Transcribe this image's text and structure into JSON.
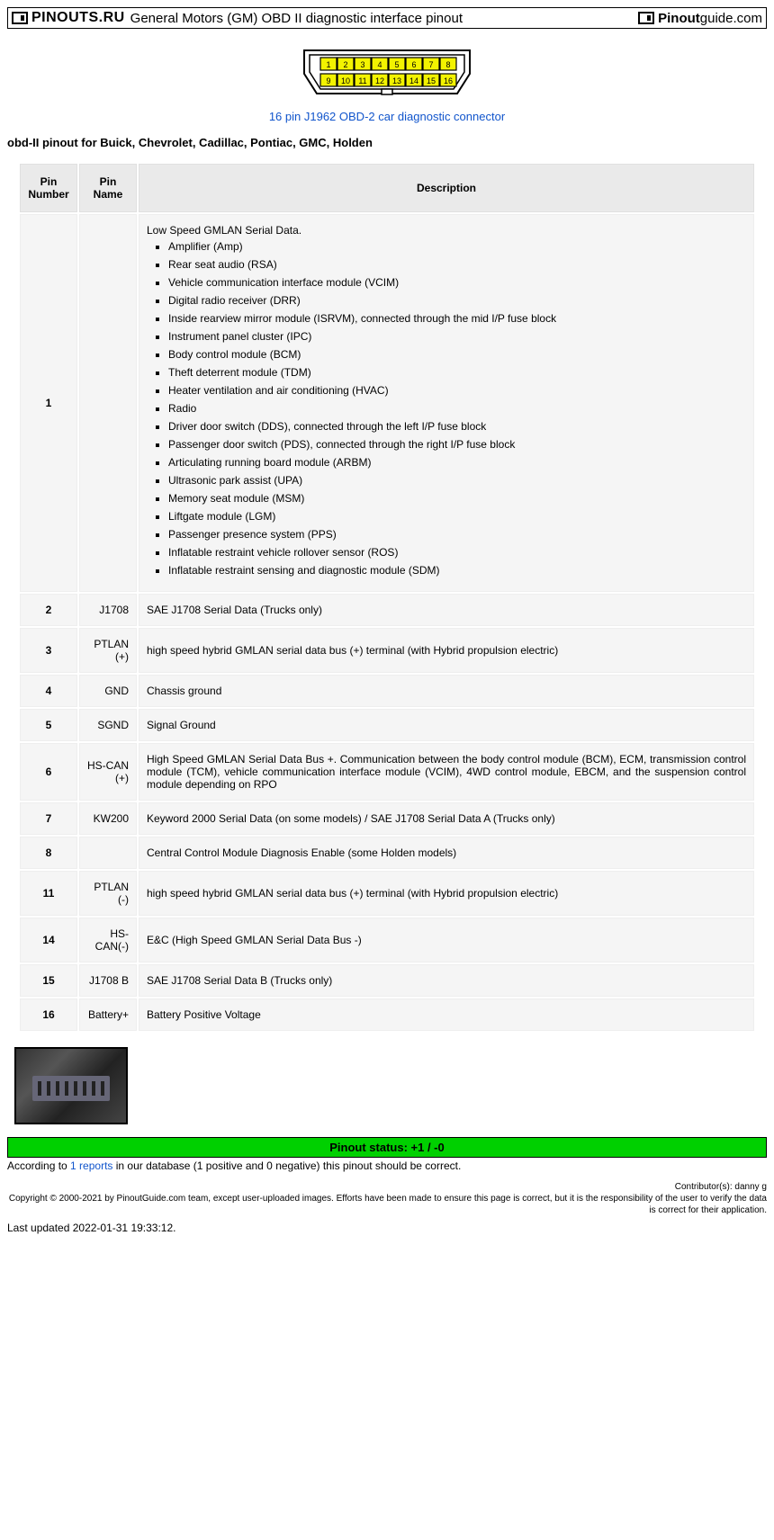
{
  "header": {
    "logo_left": "PINOUTS.RU",
    "title": "General Motors (GM) OBD II diagnostic interface pinout",
    "logo_right_a": "Pinout",
    "logo_right_b": "guide",
    "logo_right_c": ".com"
  },
  "connector": {
    "pins_top": [
      "1",
      "2",
      "3",
      "4",
      "5",
      "6",
      "7",
      "8"
    ],
    "pins_bottom": [
      "9",
      "10",
      "11",
      "12",
      "13",
      "14",
      "15",
      "16"
    ],
    "pin_fill": "#f3f300",
    "outline": "#000000",
    "link_text": "16 pin J1962 OBD-2 car diagnostic connector",
    "link_color": "#1155cc"
  },
  "subtitle": "obd-II pinout for Buick, Chevrolet, Cadillac, Pontiac, GMC, Holden",
  "table": {
    "headers": [
      "Pin Number",
      "Pin Name",
      "Description"
    ],
    "rows": [
      {
        "num": "1",
        "name": "",
        "desc_intro": "Low Speed GMLAN Serial Data.",
        "list": [
          "Amplifier (Amp)",
          "Rear seat audio (RSA)",
          "Vehicle communication interface module (VCIM)",
          "Digital radio receiver (DRR)",
          "Inside rearview mirror module (ISRVM), connected through the mid I/P fuse block",
          "Instrument panel cluster (IPC)",
          "Body control module (BCM)",
          "Theft deterrent module (TDM)",
          "Heater ventilation and air conditioning (HVAC)",
          "Radio",
          "Driver door switch (DDS), connected through the left I/P fuse block",
          "Passenger door switch (PDS), connected through the right I/P fuse block",
          "Articulating running board module (ARBM)",
          "Ultrasonic park assist (UPA)",
          "Memory seat module (MSM)",
          "Liftgate module (LGM)",
          "Passenger presence system (PPS)",
          "Inflatable restraint vehicle rollover sensor (ROS)",
          "Inflatable restraint sensing and diagnostic module (SDM)"
        ]
      },
      {
        "num": "2",
        "name": "J1708",
        "desc": "SAE J1708 Serial Data (Trucks only)"
      },
      {
        "num": "3",
        "name": "PTLAN (+)",
        "desc": "high speed hybrid GMLAN serial data bus (+) terminal  (with Hybrid propulsion electric)"
      },
      {
        "num": "4",
        "name": "GND",
        "desc": "Chassis ground"
      },
      {
        "num": "5",
        "name": "SGND",
        "desc": "Signal Ground"
      },
      {
        "num": "6",
        "name": "HS-CAN (+)",
        "desc": "High Speed GMLAN Serial Data Bus +. Communication between the body control module (BCM), ECM, transmission control module (TCM), vehicle communication interface module (VCIM), 4WD control module, EBCM, and the suspension control module depending on RPO",
        "justify": true
      },
      {
        "num": "7",
        "name": "KW200",
        "desc": "Keyword 2000 Serial Data (on some models) / SAE J1708 Serial Data A (Trucks only)"
      },
      {
        "num": "8",
        "name": "",
        "desc": "Central Control Module Diagnosis Enable (some Holden models)"
      },
      {
        "num": "11",
        "name": "PTLAN (-)",
        "desc": "high speed hybrid GMLAN serial data bus (+) terminal  (with Hybrid propulsion electric)"
      },
      {
        "num": "14",
        "name": "HS-CAN(-)",
        "desc": " E&C (High Speed GMLAN Serial Data Bus -)"
      },
      {
        "num": "15",
        "name": "J1708 B",
        "desc": "SAE J1708 Serial Data B (Trucks only)"
      },
      {
        "num": "16",
        "name": "Battery+",
        "desc": "Battery Positive Voltage"
      }
    ]
  },
  "status": {
    "bar_text": "Pinout status: +1 / -0",
    "bar_bg": "#00d000",
    "text_before": "According to ",
    "reports_link": "1 reports",
    "text_after": " in our database (1 positive and 0 negative) this pinout should be correct."
  },
  "footer": {
    "contributors": "Contributor(s): danny g",
    "copyright": "Copyright © 2000-2021 by PinoutGuide.com team, except user-uploaded images. Efforts have been made to ensure this page is correct, but it is the responsibility of the user to verify the data is correct for their application."
  },
  "updated": "Last updated 2022-01-31 19:33:12."
}
